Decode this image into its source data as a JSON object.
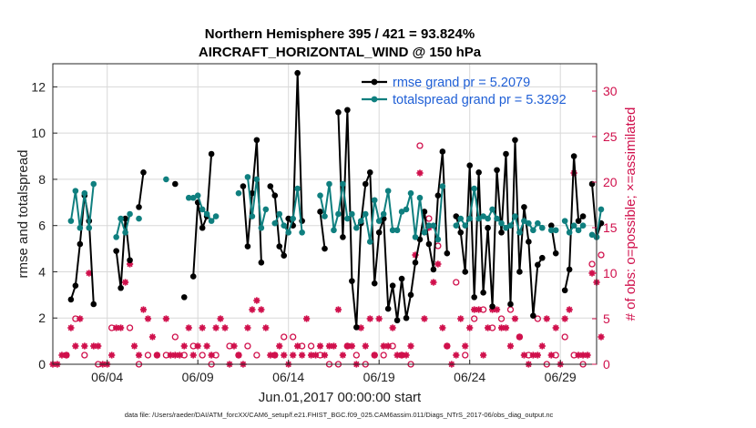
{
  "chart_data": {
    "type": "line",
    "title": "Northern Hemisphere 395 / 421 = 93.824%",
    "subtitle": "AIRCRAFT_HORIZONTAL_WIND @ 150 hPa",
    "xlabel": "Jun.01,2017 00:00:00 start",
    "ylabel": "rmse and totalspread",
    "ylabel_right": "# of obs: o=possible; ×=assimilated",
    "xlim": [
      0,
      30
    ],
    "ylim": [
      0,
      13
    ],
    "ylim_right": [
      0,
      33
    ],
    "xticks": [
      3,
      8,
      13,
      18,
      23,
      28
    ],
    "xtick_labels": [
      "06/04",
      "06/09",
      "06/14",
      "06/19",
      "06/24",
      "06/29"
    ],
    "yticks": [
      0,
      2,
      4,
      6,
      8,
      10,
      12
    ],
    "yticks_right": [
      0,
      5,
      10,
      15,
      20,
      25,
      30
    ],
    "legend_position": "top-right",
    "series": [
      {
        "name": "rmse grand pr = 5.2079",
        "color": "#000000",
        "points": [
          [
            1.0,
            2.8
          ],
          [
            1.25,
            3.4
          ],
          [
            1.5,
            5.2
          ],
          [
            1.75,
            7.3
          ],
          [
            2.0,
            6.2
          ],
          [
            2.25,
            2.6
          ],
          [
            3.5,
            4.9
          ],
          [
            3.75,
            3.3
          ],
          [
            4.0,
            6.3
          ],
          [
            4.25,
            4.5
          ],
          [
            4.75,
            6.8
          ],
          [
            5.0,
            8.3
          ],
          [
            6.75,
            7.8
          ],
          [
            7.25,
            2.9
          ],
          [
            7.75,
            3.8
          ],
          [
            8.0,
            7.0
          ],
          [
            8.25,
            5.9
          ],
          [
            8.5,
            6.4
          ],
          [
            8.75,
            9.1
          ],
          [
            10.5,
            7.7
          ],
          [
            10.75,
            5.1
          ],
          [
            11.0,
            7.4
          ],
          [
            11.25,
            9.7
          ],
          [
            11.5,
            4.4
          ],
          [
            12.0,
            7.7
          ],
          [
            12.25,
            7.3
          ],
          [
            12.5,
            5.1
          ],
          [
            12.75,
            4.7
          ],
          [
            13.0,
            6.3
          ],
          [
            13.25,
            6.0
          ],
          [
            13.5,
            12.6
          ],
          [
            13.75,
            6.2
          ],
          [
            14.75,
            6.6
          ],
          [
            15.0,
            5.0
          ],
          [
            15.75,
            10.9
          ],
          [
            16.0,
            5.5
          ],
          [
            16.25,
            11.0
          ],
          [
            16.5,
            3.6
          ],
          [
            16.75,
            1.6
          ],
          [
            17.0,
            6.1
          ],
          [
            17.25,
            7.8
          ],
          [
            17.5,
            8.3
          ],
          [
            17.75,
            3.5
          ],
          [
            18.0,
            5.7
          ],
          [
            18.25,
            6.3
          ],
          [
            18.5,
            2.4
          ],
          [
            18.75,
            3.4
          ],
          [
            19.0,
            1.9
          ],
          [
            19.25,
            3.7
          ],
          [
            19.5,
            2.0
          ],
          [
            19.75,
            3.0
          ],
          [
            20.0,
            4.4
          ],
          [
            20.25,
            5.4
          ],
          [
            20.5,
            6.6
          ],
          [
            20.75,
            5.2
          ],
          [
            21.0,
            4.1
          ],
          [
            21.25,
            7.3
          ],
          [
            21.5,
            9.2
          ],
          [
            21.75,
            4.8
          ],
          [
            22.25,
            6.4
          ],
          [
            22.5,
            5.7
          ],
          [
            22.75,
            4.0
          ],
          [
            23.0,
            8.6
          ],
          [
            23.25,
            2.9
          ],
          [
            23.5,
            8.3
          ],
          [
            23.75,
            3.1
          ],
          [
            24.0,
            5.9
          ],
          [
            24.25,
            2.5
          ],
          [
            24.5,
            8.4
          ],
          [
            24.75,
            5.7
          ],
          [
            25.0,
            9.1
          ],
          [
            25.25,
            2.6
          ],
          [
            25.5,
            9.7
          ],
          [
            25.75,
            4.0
          ],
          [
            26.0,
            6.8
          ],
          [
            26.25,
            5.3
          ],
          [
            26.5,
            2.1
          ],
          [
            26.75,
            4.3
          ],
          [
            27.0,
            4.6
          ],
          [
            27.5,
            6.0
          ],
          [
            27.75,
            4.8
          ],
          [
            28.25,
            3.2
          ],
          [
            28.5,
            4.1
          ],
          [
            28.75,
            9.0
          ],
          [
            29.0,
            6.2
          ],
          [
            29.25,
            6.4
          ],
          [
            29.75,
            7.8
          ],
          [
            30.0,
            5.5
          ],
          [
            30.25,
            6.1
          ]
        ]
      },
      {
        "name": "totalspread grand pr = 5.3292",
        "color": "#0f7f7f",
        "points": [
          [
            1.0,
            6.2
          ],
          [
            1.25,
            7.5
          ],
          [
            1.5,
            5.9
          ],
          [
            1.75,
            7.4
          ],
          [
            2.0,
            5.9
          ],
          [
            2.25,
            7.8
          ],
          [
            3.5,
            5.5
          ],
          [
            3.75,
            6.3
          ],
          [
            4.0,
            5.7
          ],
          [
            4.25,
            6.5
          ],
          [
            4.75,
            6.3
          ],
          [
            6.25,
            8.0
          ],
          [
            7.5,
            7.2
          ],
          [
            7.75,
            7.2
          ],
          [
            8.0,
            7.3
          ],
          [
            8.25,
            6.7
          ],
          [
            8.5,
            6.5
          ],
          [
            8.75,
            6.2
          ],
          [
            9.0,
            6.4
          ],
          [
            10.25,
            7.4
          ],
          [
            10.75,
            8.1
          ],
          [
            11.0,
            6.4
          ],
          [
            11.25,
            8.0
          ],
          [
            11.5,
            5.9
          ],
          [
            11.75,
            6.7
          ],
          [
            12.25,
            6.1
          ],
          [
            12.5,
            6.5
          ],
          [
            12.75,
            6.0
          ],
          [
            13.0,
            5.7
          ],
          [
            13.25,
            6.3
          ],
          [
            13.5,
            7.6
          ],
          [
            13.75,
            5.7
          ],
          [
            14.75,
            7.3
          ],
          [
            15.0,
            6.4
          ],
          [
            15.25,
            7.8
          ],
          [
            15.5,
            5.8
          ],
          [
            15.75,
            6.5
          ],
          [
            16.0,
            7.8
          ],
          [
            16.25,
            6.3
          ],
          [
            16.5,
            6.5
          ],
          [
            16.75,
            5.9
          ],
          [
            17.0,
            6.2
          ],
          [
            17.25,
            6.5
          ],
          [
            17.5,
            5.3
          ],
          [
            17.75,
            7.1
          ],
          [
            18.0,
            6.2
          ],
          [
            18.25,
            6.5
          ],
          [
            18.5,
            7.5
          ],
          [
            18.75,
            5.8
          ],
          [
            19.0,
            5.8
          ],
          [
            19.25,
            6.6
          ],
          [
            19.5,
            6.7
          ],
          [
            19.75,
            7.4
          ],
          [
            20.0,
            5.5
          ],
          [
            20.25,
            7.2
          ],
          [
            20.5,
            5.7
          ],
          [
            20.75,
            6.0
          ],
          [
            21.0,
            6.0
          ],
          [
            21.25,
            5.4
          ],
          [
            21.5,
            7.7
          ],
          [
            22.25,
            6.0
          ],
          [
            22.5,
            6.3
          ],
          [
            22.75,
            6.0
          ],
          [
            23.0,
            6.3
          ],
          [
            23.25,
            7.6
          ],
          [
            23.5,
            6.3
          ],
          [
            23.75,
            6.4
          ],
          [
            24.0,
            6.3
          ],
          [
            24.25,
            6.7
          ],
          [
            24.5,
            6.3
          ],
          [
            24.75,
            6.1
          ],
          [
            25.0,
            5.9
          ],
          [
            25.25,
            6.0
          ],
          [
            25.5,
            6.4
          ],
          [
            25.75,
            5.7
          ],
          [
            26.0,
            6.2
          ],
          [
            26.25,
            6.1
          ],
          [
            26.5,
            5.8
          ],
          [
            26.75,
            6.1
          ],
          [
            27.0,
            5.9
          ],
          [
            27.5,
            5.8
          ],
          [
            27.75,
            5.8
          ],
          [
            28.25,
            6.2
          ],
          [
            28.5,
            5.7
          ],
          [
            28.75,
            6.0
          ],
          [
            29.0,
            5.8
          ],
          [
            29.25,
            6.0
          ],
          [
            29.75,
            5.6
          ],
          [
            30.0,
            5.5
          ],
          [
            30.25,
            6.7
          ]
        ]
      }
    ],
    "obs_possible": [
      [
        0.75,
        1
      ],
      [
        1.25,
        5
      ],
      [
        1.75,
        1
      ],
      [
        2.5,
        0
      ],
      [
        3.25,
        4
      ],
      [
        4.25,
        4
      ],
      [
        4.75,
        0
      ],
      [
        5.25,
        1
      ],
      [
        5.75,
        1
      ],
      [
        6.25,
        1
      ],
      [
        6.75,
        3
      ],
      [
        7.25,
        1
      ],
      [
        7.75,
        2
      ],
      [
        8.25,
        1
      ],
      [
        8.75,
        0
      ],
      [
        9.0,
        1
      ],
      [
        9.75,
        2
      ],
      [
        10.25,
        1
      ],
      [
        10.75,
        2
      ],
      [
        11.25,
        1
      ],
      [
        12.25,
        1
      ],
      [
        12.75,
        3
      ],
      [
        13.25,
        3
      ],
      [
        13.75,
        2
      ],
      [
        14.25,
        2
      ],
      [
        14.75,
        1
      ],
      [
        15.25,
        0
      ],
      [
        15.75,
        0
      ],
      [
        16.25,
        2
      ],
      [
        16.75,
        1
      ],
      [
        17.25,
        0
      ],
      [
        17.75,
        1
      ],
      [
        18.25,
        1
      ],
      [
        18.75,
        2
      ],
      [
        19.25,
        1
      ],
      [
        19.75,
        0
      ],
      [
        20.25,
        24
      ],
      [
        20.75,
        16
      ],
      [
        21.25,
        13
      ],
      [
        21.75,
        2
      ],
      [
        22.25,
        9
      ],
      [
        22.75,
        1
      ],
      [
        23.25,
        5
      ],
      [
        23.75,
        6
      ],
      [
        24.25,
        4
      ],
      [
        24.75,
        5
      ],
      [
        25.25,
        6
      ],
      [
        25.75,
        3
      ],
      [
        26.25,
        1
      ],
      [
        26.75,
        5
      ],
      [
        27.25,
        0
      ],
      [
        27.75,
        1
      ],
      [
        28.25,
        3
      ],
      [
        28.75,
        1
      ],
      [
        29.25,
        0
      ],
      [
        29.75,
        11
      ],
      [
        30.25,
        12
      ]
    ],
    "obs_assimilated": [
      [
        0.0,
        0
      ],
      [
        0.25,
        0
      ],
      [
        0.5,
        1
      ],
      [
        0.75,
        1
      ],
      [
        1.0,
        4
      ],
      [
        1.25,
        2
      ],
      [
        1.5,
        5
      ],
      [
        1.75,
        2
      ],
      [
        2.0,
        10
      ],
      [
        2.25,
        2
      ],
      [
        2.5,
        2
      ],
      [
        2.75,
        0
      ],
      [
        3.0,
        0
      ],
      [
        3.25,
        1
      ],
      [
        3.5,
        4
      ],
      [
        3.75,
        4
      ],
      [
        4.0,
        9
      ],
      [
        4.25,
        11
      ],
      [
        4.5,
        2
      ],
      [
        4.75,
        1
      ],
      [
        5.0,
        6
      ],
      [
        5.25,
        5
      ],
      [
        5.5,
        3
      ],
      [
        5.75,
        1
      ],
      [
        6.25,
        5
      ],
      [
        6.5,
        1
      ],
      [
        6.75,
        1
      ],
      [
        7.0,
        1
      ],
      [
        7.25,
        2
      ],
      [
        7.5,
        4
      ],
      [
        7.75,
        1
      ],
      [
        8.0,
        2
      ],
      [
        8.25,
        4
      ],
      [
        8.5,
        2
      ],
      [
        8.75,
        1
      ],
      [
        9.0,
        4
      ],
      [
        9.25,
        5
      ],
      [
        9.5,
        4
      ],
      [
        9.75,
        0
      ],
      [
        10.0,
        2
      ],
      [
        10.25,
        1
      ],
      [
        10.5,
        0
      ],
      [
        10.75,
        4
      ],
      [
        11.0,
        6
      ],
      [
        11.25,
        7
      ],
      [
        11.5,
        6
      ],
      [
        11.75,
        4
      ],
      [
        12.0,
        1
      ],
      [
        12.25,
        1
      ],
      [
        12.5,
        2
      ],
      [
        12.75,
        1
      ],
      [
        13.0,
        0
      ],
      [
        13.25,
        1
      ],
      [
        13.5,
        2
      ],
      [
        13.75,
        1
      ],
      [
        14.0,
        5
      ],
      [
        14.25,
        1
      ],
      [
        14.5,
        1
      ],
      [
        14.75,
        2
      ],
      [
        15.0,
        1
      ],
      [
        15.25,
        2
      ],
      [
        15.5,
        2
      ],
      [
        15.75,
        6
      ],
      [
        16.0,
        1
      ],
      [
        16.25,
        2
      ],
      [
        16.5,
        2
      ],
      [
        16.75,
        0
      ],
      [
        17.0,
        4
      ],
      [
        17.25,
        2
      ],
      [
        17.5,
        5
      ],
      [
        17.75,
        1
      ],
      [
        18.0,
        5
      ],
      [
        18.25,
        2
      ],
      [
        18.5,
        2
      ],
      [
        18.75,
        4
      ],
      [
        19.0,
        1
      ],
      [
        19.25,
        1
      ],
      [
        19.5,
        1
      ],
      [
        19.75,
        2
      ],
      [
        20.0,
        12
      ],
      [
        20.25,
        21
      ],
      [
        20.5,
        5
      ],
      [
        20.75,
        15
      ],
      [
        21.0,
        9
      ],
      [
        21.25,
        11
      ],
      [
        21.5,
        4
      ],
      [
        21.75,
        2
      ],
      [
        22.0,
        0
      ],
      [
        22.25,
        1
      ],
      [
        22.5,
        5
      ],
      [
        22.75,
        2
      ],
      [
        23.0,
        4
      ],
      [
        23.25,
        6
      ],
      [
        23.5,
        6
      ],
      [
        23.75,
        1
      ],
      [
        24.0,
        4
      ],
      [
        24.25,
        6
      ],
      [
        24.5,
        6
      ],
      [
        24.75,
        4
      ],
      [
        25.0,
        4
      ],
      [
        25.25,
        2
      ],
      [
        25.5,
        5
      ],
      [
        25.75,
        3
      ],
      [
        26.0,
        1
      ],
      [
        26.25,
        0
      ],
      [
        26.5,
        1
      ],
      [
        26.75,
        1
      ],
      [
        27.0,
        2
      ],
      [
        27.25,
        5
      ],
      [
        27.5,
        1
      ],
      [
        27.75,
        4
      ],
      [
        28.0,
        0
      ],
      [
        28.25,
        5
      ],
      [
        28.5,
        6
      ],
      [
        28.75,
        21
      ],
      [
        29.0,
        1
      ],
      [
        29.25,
        1
      ],
      [
        29.5,
        1
      ],
      [
        29.75,
        10
      ],
      [
        30.0,
        9
      ],
      [
        30.25,
        3
      ]
    ]
  },
  "footer": "data file: /Users/raeder/DAI/ATM_forcXX/CAM6_setup/f.e21.FHIST_BGC.f09_025.CAM6assim.011/Diags_NTrS_2017-06/obs_diag_output.nc",
  "colors": {
    "rmse": "#000000",
    "spread": "#0f7f7f",
    "obs": "#d0104c",
    "legend_text": "#1f5fd6"
  }
}
